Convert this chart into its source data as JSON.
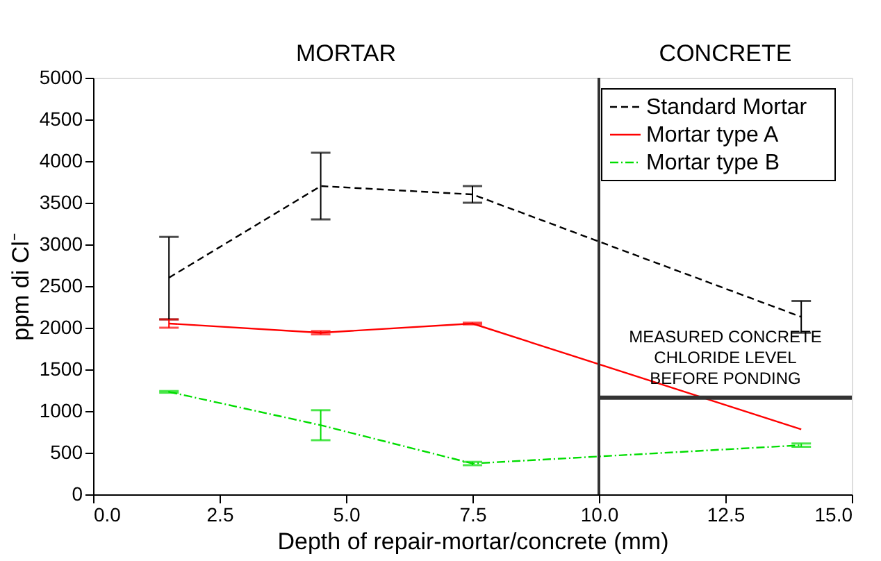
{
  "chart_data": {
    "type": "line",
    "xlabel": "Depth of repair-mortar/concrete (mm)",
    "ylabel": "ppm di Cl⁻",
    "annotations": [
      "MORTAR",
      "CONCRETE"
    ],
    "series": [
      {
        "name": "Standard Mortar",
        "color": "#000000",
        "line_style": "dashed",
        "x": [
          1.5,
          4.5,
          7.5,
          14
        ],
        "values": [
          2600,
          3700,
          3600,
          2130
        ],
        "errors": [
          [
            2100,
            3090
          ],
          400,
          100,
          190
        ]
      },
      {
        "name": "Mortar type A",
        "color": "#ff0000",
        "line_style": "solid",
        "x": [
          1.5,
          4.5,
          7.5,
          14
        ],
        "values": [
          2050,
          1940,
          2050,
          780
        ],
        "errors": [
          50,
          20,
          10,
          null
        ]
      },
      {
        "name": "Mortar type B",
        "color": "#00dd00",
        "line_style": "dotted",
        "x": [
          1.5,
          4.5,
          7.5,
          14
        ],
        "values": [
          1230,
          830,
          370,
          590
        ],
        "errors": [
          10,
          180,
          20,
          20
        ]
      }
    ],
    "ref_lines": [
      {
        "axis": "x",
        "value": 10,
        "color": "#333333"
      },
      {
        "axis": "y",
        "value": 1160,
        "label": "MEASURED CONCRETE CHLORIDE LEVEL BEFORE PONDING",
        "color": "#333333"
      }
    ],
    "xlim": [
      0,
      15
    ],
    "ylim": [
      0,
      5000
    ],
    "xticks": [
      {
        "value": 0,
        "label": "0.0"
      },
      {
        "value": 2.5,
        "label": "2.5"
      },
      {
        "value": 5,
        "label": "5.0"
      },
      {
        "value": 7.5,
        "label": "7.5"
      },
      {
        "value": 10,
        "label": "10.0"
      },
      {
        "value": 12.5,
        "label": "12.5"
      },
      {
        "value": 15,
        "label": "15.0"
      }
    ],
    "yticks": [
      0,
      500,
      1000,
      1500,
      2000,
      2500,
      3000,
      3500,
      4000,
      4500,
      5000
    ],
    "grid": false,
    "legend": "top right",
    "marker": "none"
  }
}
